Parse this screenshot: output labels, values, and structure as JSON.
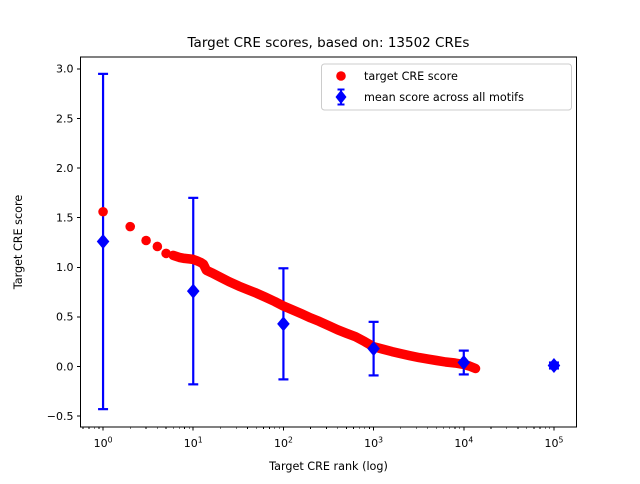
{
  "chart_data": {
    "type": "scatter",
    "title": "Target CRE scores, based on: 13502 CREs",
    "xlabel": "Target CRE rank (log)",
    "ylabel": "Target CRE score",
    "xscale": "log",
    "xlim": [
      0.562,
      177828
    ],
    "ylim": [
      -0.61,
      3.12
    ],
    "xticks": [
      1,
      10,
      100,
      1000,
      10000,
      100000
    ],
    "xtick_labels": [
      "10⁰",
      "10¹",
      "10²",
      "10³",
      "10⁴",
      "10⁵"
    ],
    "yticks": [
      3.0,
      2.5,
      2.0,
      1.5,
      1.0,
      0.5,
      0.0,
      -0.5
    ],
    "ytick_labels": [
      "3.0",
      "2.5",
      "2.0",
      "1.5",
      "1.0",
      "0.5",
      "0.0",
      "−0.5"
    ],
    "grid": false,
    "legend_position": "upper right",
    "series": [
      {
        "name": "target CRE score",
        "kind": "scatter",
        "marker": "circle",
        "color": "#ff0000",
        "n_points": 13502,
        "points": [
          [
            1,
            1.56
          ],
          [
            2,
            1.41
          ],
          [
            3,
            1.27
          ],
          [
            4,
            1.21
          ],
          [
            5,
            1.14
          ],
          [
            6,
            1.12
          ],
          [
            7,
            1.1
          ],
          [
            8,
            1.09
          ],
          [
            9,
            1.085
          ],
          [
            10,
            1.08
          ],
          [
            11,
            1.065
          ],
          [
            12,
            1.05
          ],
          [
            13,
            1.03
          ],
          [
            14,
            0.97
          ],
          [
            16,
            0.945
          ],
          [
            20,
            0.9
          ],
          [
            25,
            0.855
          ],
          [
            32,
            0.81
          ],
          [
            40,
            0.775
          ],
          [
            50,
            0.74
          ],
          [
            63,
            0.7
          ],
          [
            80,
            0.655
          ],
          [
            100,
            0.61
          ],
          [
            126,
            0.57
          ],
          [
            160,
            0.53
          ],
          [
            200,
            0.49
          ],
          [
            250,
            0.455
          ],
          [
            320,
            0.41
          ],
          [
            400,
            0.37
          ],
          [
            500,
            0.335
          ],
          [
            630,
            0.3
          ],
          [
            800,
            0.25
          ],
          [
            1000,
            0.2
          ],
          [
            1260,
            0.175
          ],
          [
            1600,
            0.15
          ],
          [
            2000,
            0.13
          ],
          [
            2500,
            0.11
          ],
          [
            3200,
            0.09
          ],
          [
            4000,
            0.075
          ],
          [
            5000,
            0.06
          ],
          [
            6300,
            0.045
          ],
          [
            8000,
            0.035
          ],
          [
            10000,
            0.02
          ],
          [
            11500,
            0.005
          ],
          [
            13502,
            -0.02
          ]
        ]
      },
      {
        "name": "mean score across all motifs",
        "kind": "errorbar",
        "marker": "diamond",
        "color": "#0000ff",
        "x": [
          1,
          10,
          100,
          1000,
          10000,
          100000
        ],
        "y": [
          1.26,
          0.76,
          0.43,
          0.18,
          0.04,
          0.01
        ],
        "yerr": [
          1.69,
          0.94,
          0.56,
          0.27,
          0.12,
          0.03
        ]
      }
    ]
  }
}
